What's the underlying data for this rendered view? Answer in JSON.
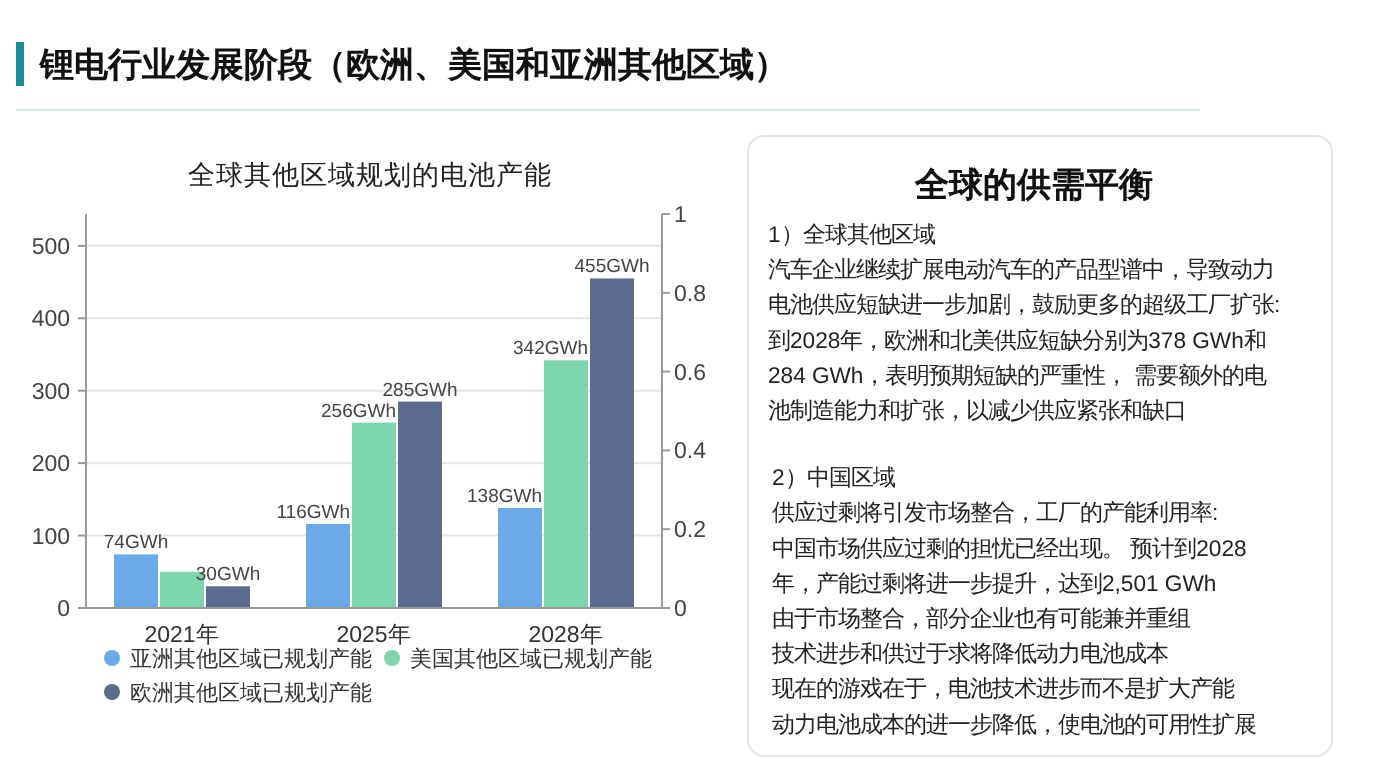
{
  "chart_data": [
    {
      "type": "other",
      "title": "锂电行业发展阶段（欧洲、美国和亚洲其他区域）"
    },
    {
      "type": "bar",
      "title": "全球其他区域规划的电池产能",
      "categories": [
        "2021年",
        "2025年",
        "2028年"
      ],
      "series": [
        {
          "name": "亚洲其他区域已规划产能",
          "color": "#6aaae8",
          "values": [
            74,
            116,
            138
          ],
          "value_labels": [
            "74GWh",
            "116GWh",
            "138GWh"
          ]
        },
        {
          "name": "美国其他区域已规划产能",
          "color": "#7dd6ad",
          "values": [
            50,
            256,
            342
          ],
          "value_labels": [
            null,
            "256GWh",
            "342GWh"
          ]
        },
        {
          "name": "欧洲其他区域已规划产能",
          "color": "#5b6a8f",
          "values": [
            30,
            285,
            455
          ],
          "value_labels": [
            "30GWh",
            "285GWh",
            "455GWh"
          ]
        }
      ],
      "ylim": [
        0,
        544
      ],
      "yticks": [
        0,
        100,
        200,
        300,
        400,
        500
      ],
      "y2lim": [
        0,
        1
      ],
      "y2ticks": [
        0,
        0.2,
        0.4,
        0.6,
        0.8,
        1
      ],
      "grid": "y",
      "legend": "bottom"
    },
    {
      "type": "other",
      "title": "全球的供需平衡",
      "annotations": [
        "1）全球其他区域",
        "汽车企业继续扩展电动汽车的产品型谱中，导致动力",
        "电池供应短缺进一步加剧，鼓励更多的超级工厂扩张:",
        "到2028年，欧洲和北美供应短缺分别为378 GWh和",
        "284 GWh，表明预期短缺的严重性， 需要额外的电",
        "池制造能力和扩张，以减少供应紧张和缺口",
        "2）中国区域",
        "供应过剩将引发市场整合，工厂的产能利用率:",
        "中国市场供应过剩的担忧已经出现。 预计到2028",
        "年，产能过剩将进一步提升，达到2,501 GWh",
        "由于市场整合，部分企业也有可能兼并重组",
        "技术进步和供过于求将降低动力电池成本",
        "现在的游戏在于，电池技术进步而不是扩大产能",
        "动力电池成本的进一步降低，使电池的可用性扩展"
      ]
    }
  ]
}
